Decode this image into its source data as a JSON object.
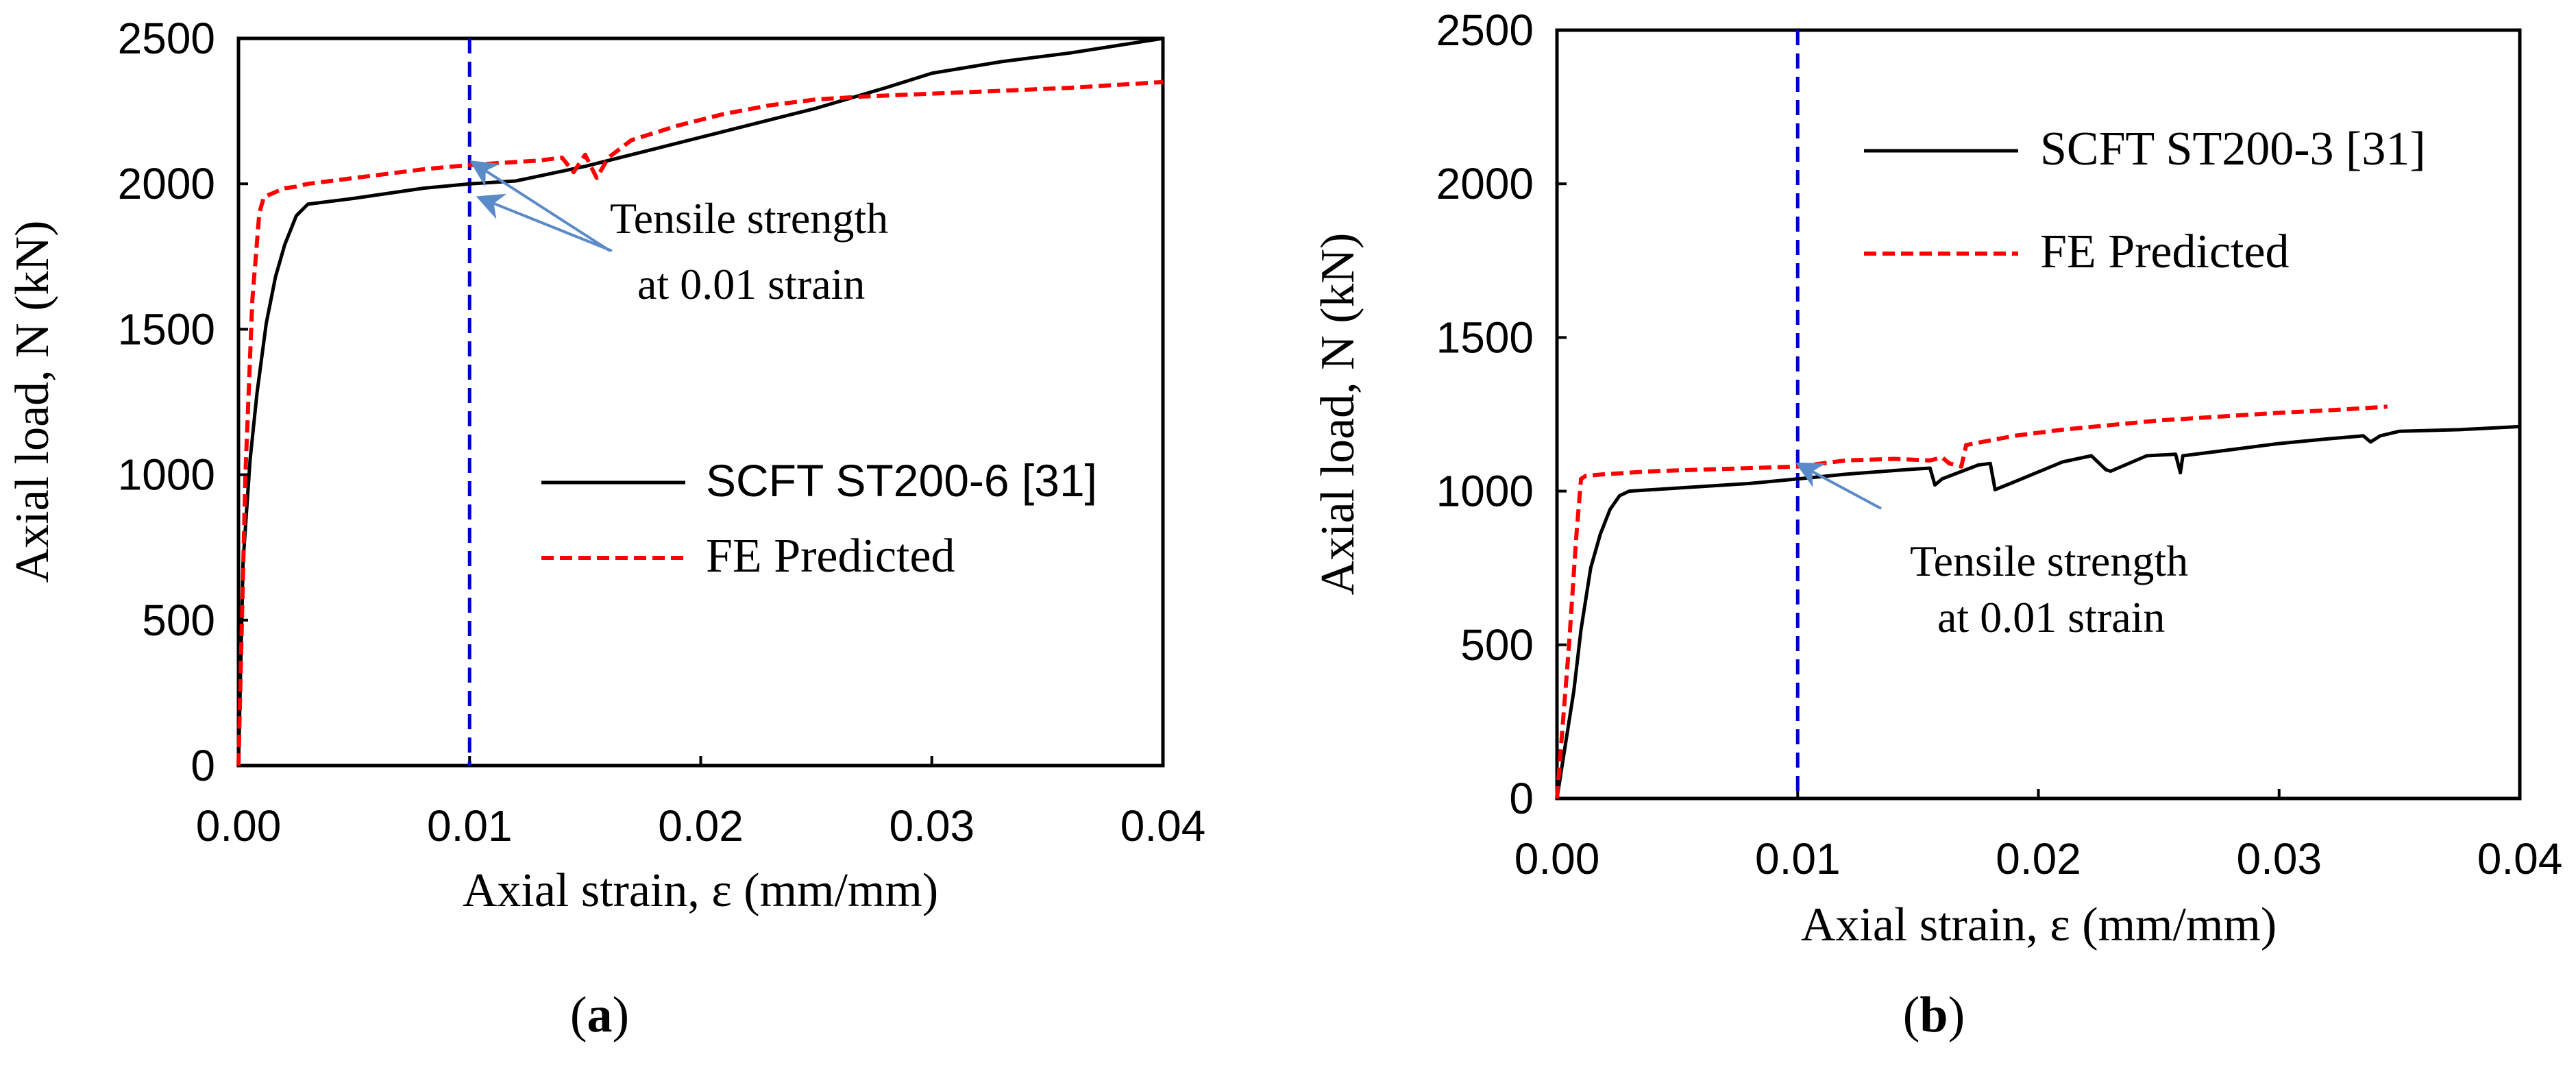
{
  "chart_data": [
    {
      "type": "line",
      "panel": "a",
      "title": "",
      "xlabel": "Axial strain, ε (mm/mm)",
      "ylabel": "Axial load, N (kN)",
      "xlim": [
        0,
        0.04
      ],
      "ylim": [
        0,
        2500
      ],
      "xticks": [
        0,
        0.01,
        0.02,
        0.03,
        0.04
      ],
      "yticks": [
        0,
        500,
        1000,
        1500,
        2000,
        2500
      ],
      "xtick_labels": [
        "0.00",
        "0.01",
        "0.02",
        "0.03",
        "0.04"
      ],
      "ytick_labels": [
        "0",
        "500",
        "1000",
        "1500",
        "2000",
        "2500"
      ],
      "grid": false,
      "legend_position": "center-right",
      "series": [
        {
          "name": "SCFT ST200-6 [31]",
          "color": "#000000",
          "style": "solid",
          "x": [
            0,
            0.0002,
            0.0005,
            0.0008,
            0.0012,
            0.0016,
            0.002,
            0.0025,
            0.003,
            0.005,
            0.008,
            0.01,
            0.012,
            0.015,
            0.018,
            0.02,
            0.022,
            0.025,
            0.028,
            0.03,
            0.033,
            0.036,
            0.04
          ],
          "y": [
            0,
            700,
            1050,
            1280,
            1520,
            1680,
            1790,
            1890,
            1930,
            1950,
            1985,
            2000,
            2010,
            2060,
            2120,
            2160,
            2200,
            2260,
            2330,
            2380,
            2420,
            2450,
            2500
          ]
        },
        {
          "name": "FE Predicted",
          "color": "#ff0000",
          "style": "dashed",
          "x": [
            0,
            0.0003,
            0.0006,
            0.0009,
            0.0011,
            0.0014,
            0.0017,
            0.002,
            0.0025,
            0.003,
            0.004,
            0.005,
            0.006,
            0.008,
            0.01,
            0.012,
            0.013,
            0.014,
            0.0145,
            0.015,
            0.0155,
            0.016,
            0.0165,
            0.017,
            0.019,
            0.021,
            0.023,
            0.025,
            0.027,
            0.03,
            0.033,
            0.036,
            0.04
          ],
          "y": [
            0,
            1000,
            1600,
            1900,
            1955,
            1965,
            1975,
            1985,
            1990,
            2000,
            2010,
            2020,
            2030,
            2050,
            2065,
            2075,
            2080,
            2090,
            2040,
            2100,
            2020,
            2090,
            2120,
            2150,
            2200,
            2240,
            2270,
            2290,
            2300,
            2310,
            2320,
            2330,
            2350
          ]
        }
      ],
      "reference_line": {
        "x": 0.01,
        "color": "#0000cc",
        "style": "dashed"
      },
      "annotation": {
        "line1": "Tensile strength",
        "line2": "at 0.01 strain",
        "targets": [
          [
            0.0102,
            2070
          ],
          [
            0.0105,
            1950
          ]
        ],
        "arrow_color": "#5b8ac8"
      },
      "panel_label": {
        "open": "(",
        "letter": "a",
        "close": ")"
      }
    },
    {
      "type": "line",
      "panel": "b",
      "title": "",
      "xlabel": "Axial strain, ε (mm/mm)",
      "ylabel": "Axial load, N (kN)",
      "xlim": [
        0,
        0.04
      ],
      "ylim": [
        0,
        2500
      ],
      "xticks": [
        0,
        0.01,
        0.02,
        0.03,
        0.04
      ],
      "yticks": [
        0,
        500,
        1000,
        1500,
        2000,
        2500
      ],
      "xtick_labels": [
        "0.00",
        "0.01",
        "0.02",
        "0.03",
        "0.04"
      ],
      "ytick_labels": [
        "0",
        "500",
        "1000",
        "1500",
        "2000",
        "2500"
      ],
      "grid": false,
      "legend_position": "top-center",
      "series": [
        {
          "name": "SCFT ST200-3 [31]",
          "color": "#000000",
          "style": "solid",
          "x": [
            0,
            0.0003,
            0.0007,
            0.001,
            0.0014,
            0.0018,
            0.0022,
            0.0026,
            0.003,
            0.005,
            0.008,
            0.01,
            0.012,
            0.0145,
            0.0155,
            0.0157,
            0.016,
            0.0175,
            0.018,
            0.0182,
            0.019,
            0.021,
            0.0222,
            0.0228,
            0.023,
            0.0245,
            0.0257,
            0.0259,
            0.026,
            0.028,
            0.03,
            0.032,
            0.0335,
            0.0338,
            0.0342,
            0.035,
            0.0375,
            0.04
          ],
          "y": [
            0,
            150,
            350,
            550,
            750,
            860,
            940,
            985,
            1000,
            1010,
            1025,
            1040,
            1055,
            1070,
            1075,
            1020,
            1040,
            1085,
            1090,
            1005,
            1030,
            1095,
            1115,
            1070,
            1065,
            1115,
            1120,
            1060,
            1115,
            1135,
            1155,
            1170,
            1180,
            1160,
            1180,
            1195,
            1200,
            1210
          ]
        },
        {
          "name": "FE Predicted",
          "color": "#ff0000",
          "style": "dashed",
          "x": [
            0,
            0.0002,
            0.0005,
            0.0008,
            0.001,
            0.0012,
            0.002,
            0.004,
            0.006,
            0.008,
            0.01,
            0.012,
            0.014,
            0.0155,
            0.016,
            0.0163,
            0.0168,
            0.017,
            0.019,
            0.021,
            0.023,
            0.025,
            0.027,
            0.03,
            0.0325,
            0.0345
          ],
          "y": [
            0,
            200,
            500,
            850,
            1040,
            1050,
            1055,
            1065,
            1070,
            1075,
            1080,
            1100,
            1105,
            1100,
            1110,
            1090,
            1080,
            1150,
            1180,
            1200,
            1215,
            1230,
            1240,
            1255,
            1265,
            1275
          ]
        }
      ],
      "reference_line": {
        "x": 0.01,
        "color": "#0000cc",
        "style": "dashed"
      },
      "annotation": {
        "line1": "Tensile strength",
        "line2": "at 0.01 strain",
        "targets": [
          [
            0.0101,
            1085
          ]
        ],
        "arrow_color": "#5b8ac8"
      },
      "panel_label": {
        "open": "(",
        "letter": "b",
        "close": ")"
      }
    }
  ]
}
